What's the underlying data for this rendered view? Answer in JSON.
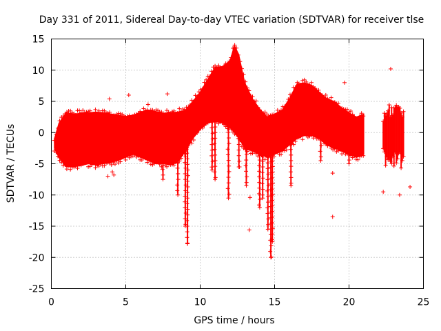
{
  "chart_data": {
    "type": "scatter",
    "title": "Day 331 of 2011, Sidereal Day-to-day VTEC variation (SDTVAR) for receiver tlse",
    "xlabel": "GPS time / hours",
    "ylabel": "SDTVAR / TECUs",
    "xlim": [
      0,
      25
    ],
    "ylim": [
      -25,
      15
    ],
    "xticks": [
      0,
      5,
      10,
      15,
      20,
      25
    ],
    "yticks": [
      -25,
      -20,
      -15,
      -10,
      -5,
      0,
      5,
      10,
      15
    ],
    "grid": true,
    "marker": "+",
    "series_color": "#ff0000",
    "series": [
      {
        "name": "SDTVAR",
        "envelope": {
          "x": [
            0.2,
            0.5,
            1.0,
            1.5,
            2.0,
            2.5,
            3.0,
            3.5,
            4.0,
            4.5,
            5.0,
            5.5,
            6.0,
            6.5,
            7.0,
            7.5,
            8.0,
            8.5,
            9.0,
            9.5,
            10.0,
            10.5,
            11.0,
            11.5,
            12.0,
            12.3,
            12.6,
            13.0,
            13.5,
            14.0,
            14.5,
            15.0,
            15.5,
            16.0,
            16.5,
            17.0,
            17.5,
            18.0,
            18.5,
            19.0,
            19.5,
            20.0,
            20.5,
            21.0
          ],
          "upper": [
            -1.0,
            1.5,
            3.2,
            3.0,
            3.1,
            3.2,
            3.3,
            3.2,
            3.0,
            2.8,
            2.6,
            2.8,
            3.3,
            3.6,
            3.4,
            3.1,
            3.2,
            3.3,
            3.6,
            5.0,
            6.5,
            8.5,
            10.5,
            10.6,
            11.5,
            14.0,
            12.5,
            8.0,
            5.5,
            3.8,
            2.5,
            3.0,
            3.6,
            5.5,
            7.8,
            8.0,
            7.6,
            6.5,
            5.5,
            5.0,
            4.0,
            3.2,
            2.5,
            3.0
          ],
          "lower": [
            -2.5,
            -4.0,
            -5.5,
            -5.5,
            -5.3,
            -5.0,
            -5.2,
            -5.0,
            -4.8,
            -4.5,
            -4.0,
            -3.5,
            -4.0,
            -4.5,
            -5.0,
            -5.0,
            -5.2,
            -4.8,
            -3.0,
            -1.0,
            0.5,
            1.5,
            1.8,
            1.5,
            0.8,
            0.0,
            -1.0,
            -2.5,
            -3.0,
            -3.5,
            -4.0,
            -3.5,
            -3.0,
            -2.0,
            -1.0,
            -0.5,
            -0.5,
            -1.0,
            -2.0,
            -2.5,
            -3.0,
            -3.5,
            -4.0,
            -3.5
          ]
        },
        "late_segment": {
          "x": [
            22.3,
            22.6,
            23.0,
            23.3,
            23.7
          ],
          "upper": [
            3.0,
            4.5,
            5.0,
            4.5,
            3.0
          ],
          "lower": [
            -4.0,
            -5.5,
            -5.0,
            -6.0,
            -4.5
          ]
        },
        "spikes": [
          {
            "x": 7.5,
            "bottom": -7.5
          },
          {
            "x": 8.5,
            "bottom": -10.0
          },
          {
            "x": 9.0,
            "bottom": -15.0
          },
          {
            "x": 9.15,
            "bottom": -17.8
          },
          {
            "x": 10.8,
            "bottom": -6.0
          },
          {
            "x": 11.0,
            "bottom": -7.5
          },
          {
            "x": 11.9,
            "bottom": -10.5
          },
          {
            "x": 12.6,
            "bottom": -5.5
          },
          {
            "x": 13.1,
            "bottom": -8.5
          },
          {
            "x": 14.0,
            "bottom": -12.0
          },
          {
            "x": 14.2,
            "bottom": -10.5
          },
          {
            "x": 14.55,
            "bottom": -15.5
          },
          {
            "x": 14.75,
            "bottom": -20.0
          },
          {
            "x": 14.85,
            "bottom": -17.5
          },
          {
            "x": 16.1,
            "bottom": -8.5
          },
          {
            "x": 18.1,
            "bottom": -4.5
          },
          {
            "x": 20.0,
            "bottom": -5.0
          }
        ],
        "outliers": [
          [
            3.8,
            -7.0
          ],
          [
            4.1,
            -6.3
          ],
          [
            4.2,
            -6.8
          ],
          [
            3.9,
            5.4
          ],
          [
            6.5,
            4.5
          ],
          [
            7.8,
            6.2
          ],
          [
            9.15,
            -17.8
          ],
          [
            13.3,
            -15.6
          ],
          [
            13.35,
            -10.4
          ],
          [
            18.9,
            -13.5
          ],
          [
            19.7,
            8.0
          ],
          [
            22.8,
            10.2
          ],
          [
            22.3,
            -9.5
          ],
          [
            23.4,
            -10.0
          ],
          [
            24.1,
            -8.7
          ],
          [
            18.9,
            -6.5
          ],
          [
            5.2,
            6.0
          ]
        ]
      }
    ]
  }
}
